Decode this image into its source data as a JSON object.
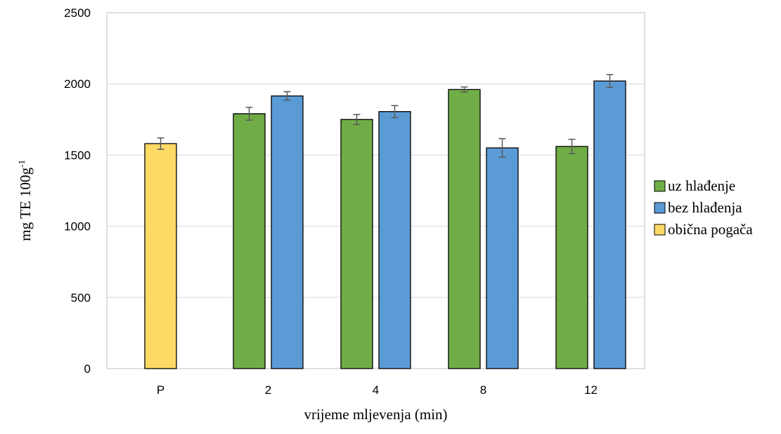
{
  "chart_data": {
    "type": "bar",
    "xlabel": "vrijeme mljevenja (min)",
    "ylabel": "mg TE 100g",
    "ylabel_superscript": "-1",
    "ylim": [
      0,
      2500
    ],
    "yticks": [
      0,
      500,
      1000,
      1500,
      2000,
      2500
    ],
    "grid": true,
    "legend_position": "right",
    "categories": [
      "P",
      "2",
      "4",
      "8",
      "12"
    ],
    "series": [
      {
        "name": "uz hlađenje",
        "color": "#70ad47",
        "values": [
          null,
          1790,
          1750,
          1960,
          1560
        ],
        "errors": [
          null,
          45,
          35,
          18,
          50
        ]
      },
      {
        "name": "bez hlađenja",
        "color": "#5b9bd5",
        "values": [
          null,
          1915,
          1805,
          1550,
          2020
        ],
        "errors": [
          null,
          30,
          42,
          65,
          45
        ]
      },
      {
        "name": "obična pogača",
        "color": "#ffd966",
        "values": [
          1580,
          null,
          null,
          null,
          null
        ],
        "errors": [
          40,
          null,
          null,
          null,
          null
        ]
      }
    ]
  }
}
